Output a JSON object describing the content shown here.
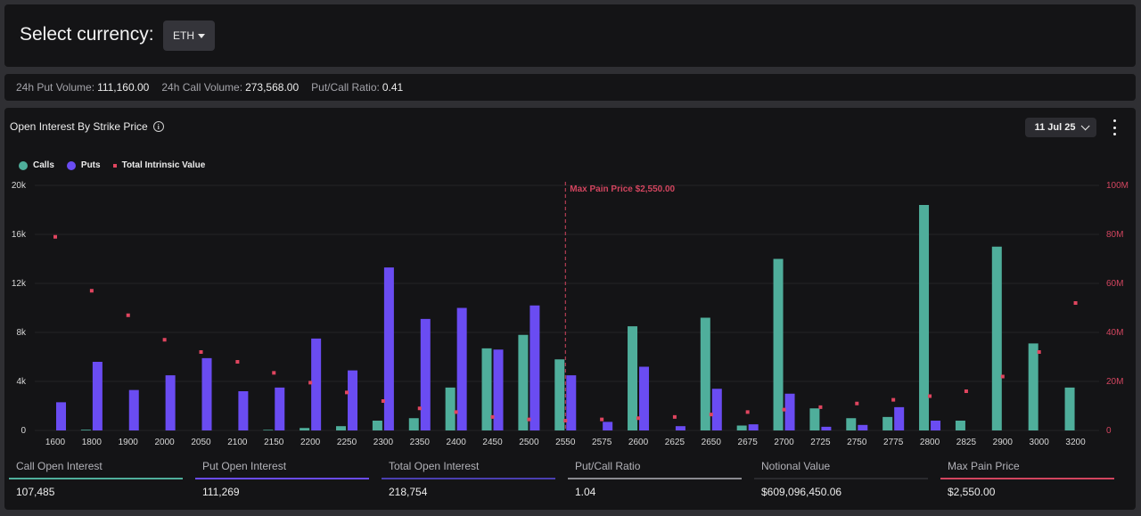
{
  "header": {
    "select_label": "Select currency:",
    "currency": "ETH"
  },
  "stats": {
    "put_volume_label": "24h Put Volume:",
    "put_volume": "111,160.00",
    "call_volume_label": "24h Call Volume:",
    "call_volume": "273,568.00",
    "ratio_label": "Put/Call Ratio:",
    "ratio": "0.41"
  },
  "chart_header": {
    "title": "Open Interest By Strike Price",
    "date": "11 Jul 25"
  },
  "legend": {
    "calls": "Calls",
    "puts": "Puts",
    "intrinsic": "Total Intrinsic Value"
  },
  "colors": {
    "calls": "#4fae9b",
    "puts": "#6a4cf2",
    "intrinsic": "#e0455f",
    "max_pain": "#d2455f"
  },
  "chart_data": {
    "type": "bar",
    "categories": [
      "1600",
      "1800",
      "1900",
      "2000",
      "2050",
      "2100",
      "2150",
      "2200",
      "2250",
      "2300",
      "2350",
      "2400",
      "2450",
      "2500",
      "2550",
      "2575",
      "2600",
      "2625",
      "2650",
      "2675",
      "2700",
      "2725",
      "2750",
      "2775",
      "2800",
      "2825",
      "2900",
      "3000",
      "3200"
    ],
    "series": [
      {
        "name": "Calls",
        "axis": "left",
        "values": [
          0,
          60,
          0,
          0,
          0,
          0,
          50,
          200,
          350,
          800,
          1000,
          3500,
          6700,
          7800,
          5800,
          0,
          8500,
          0,
          9200,
          400,
          14000,
          1800,
          1000,
          1100,
          18400,
          800,
          15000,
          7100,
          3500
        ]
      },
      {
        "name": "Puts",
        "axis": "left",
        "values": [
          2300,
          5600,
          3300,
          4500,
          5900,
          3200,
          3500,
          7500,
          4900,
          13300,
          9100,
          10000,
          6600,
          10200,
          4500,
          700,
          5200,
          350,
          3400,
          500,
          3000,
          300,
          450,
          1900,
          800,
          0,
          0,
          0,
          0
        ]
      },
      {
        "name": "Total Intrinsic Value",
        "axis": "right",
        "type": "scatter",
        "values": [
          79000000,
          57000000,
          47000000,
          37000000,
          32000000,
          28000000,
          23500000,
          19500000,
          15500000,
          12000000,
          9000000,
          7500000,
          5500000,
          4500000,
          4000000,
          4500000,
          5000000,
          5500000,
          6500000,
          7500000,
          8500000,
          9500000,
          11000000,
          12500000,
          14000000,
          16000000,
          22000000,
          32000000,
          52000000
        ]
      }
    ],
    "yticks_left": [
      "0",
      "4k",
      "8k",
      "12k",
      "16k",
      "20k"
    ],
    "yticks_right": [
      "0",
      "20M",
      "40M",
      "60M",
      "80M",
      "100M"
    ],
    "ylim_left": [
      0,
      20000
    ],
    "ylim_right": [
      0,
      100000000
    ],
    "max_pain": {
      "strike": "2550",
      "label": "Max Pain Price $2,550.00"
    },
    "legend": "top-left"
  },
  "summary": [
    {
      "label": "Call Open Interest",
      "value": "107,485",
      "color": "#4fae9b"
    },
    {
      "label": "Put Open Interest",
      "value": "111,269",
      "color": "#6a4cf2"
    },
    {
      "label": "Total Open Interest",
      "value": "218,754",
      "color": "#4a3fb0"
    },
    {
      "label": "Put/Call Ratio",
      "value": "1.04",
      "color": "#8a8a90"
    },
    {
      "label": "Notional Value",
      "value": "$609,096,450.06",
      "color": "#2a2a2e"
    },
    {
      "label": "Max Pain Price",
      "value": "$2,550.00",
      "color": "#d2455f"
    }
  ]
}
